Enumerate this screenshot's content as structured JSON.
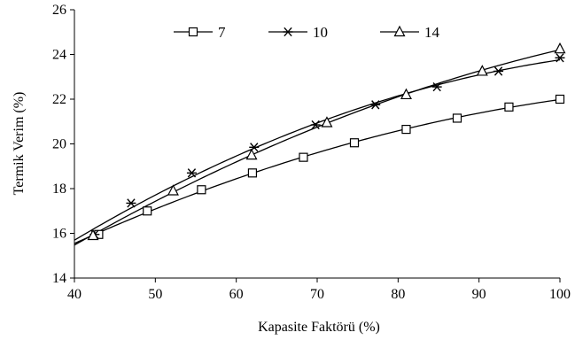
{
  "chart_data": {
    "type": "line",
    "title": "",
    "xlabel": "Kapasite Faktörü (%)",
    "ylabel": "Termik Verim (%)",
    "xlim": [
      40,
      100
    ],
    "ylim": [
      14,
      26
    ],
    "x_ticks": [
      40,
      50,
      60,
      70,
      80,
      90,
      100
    ],
    "y_ticks": [
      14,
      16,
      18,
      20,
      22,
      24,
      26
    ],
    "x_tick_labels": [
      "40",
      "50",
      "60",
      "70",
      "80",
      "90",
      "100"
    ],
    "y_tick_labels": [
      "14",
      "16",
      "18",
      "20",
      "22",
      "24",
      "26"
    ],
    "grid": false,
    "legend_position": "top",
    "series": [
      {
        "name": "7",
        "marker": "square",
        "color": "#000000",
        "points": [
          [
            43.0,
            15.95
          ],
          [
            49.0,
            17.0
          ],
          [
            55.7,
            17.95
          ],
          [
            62.0,
            18.7
          ],
          [
            68.3,
            19.4
          ],
          [
            74.6,
            20.05
          ],
          [
            81.0,
            20.65
          ],
          [
            87.3,
            21.15
          ],
          [
            93.7,
            21.65
          ],
          [
            100.0,
            22.0
          ]
        ]
      },
      {
        "name": "10",
        "marker": "asterisk",
        "color": "#000000",
        "points": [
          [
            42.5,
            15.95
          ],
          [
            47.0,
            17.35
          ],
          [
            54.5,
            18.7
          ],
          [
            62.2,
            19.85
          ],
          [
            69.8,
            20.85
          ],
          [
            77.2,
            21.75
          ],
          [
            84.8,
            22.55
          ],
          [
            92.4,
            23.25
          ],
          [
            100.0,
            23.85
          ]
        ]
      },
      {
        "name": "14",
        "marker": "triangle",
        "color": "#000000",
        "points": [
          [
            42.3,
            15.9
          ],
          [
            52.2,
            17.9
          ],
          [
            61.9,
            19.5
          ],
          [
            71.2,
            20.95
          ],
          [
            81.0,
            22.2
          ],
          [
            90.4,
            23.25
          ],
          [
            100.0,
            24.25
          ]
        ]
      }
    ]
  }
}
